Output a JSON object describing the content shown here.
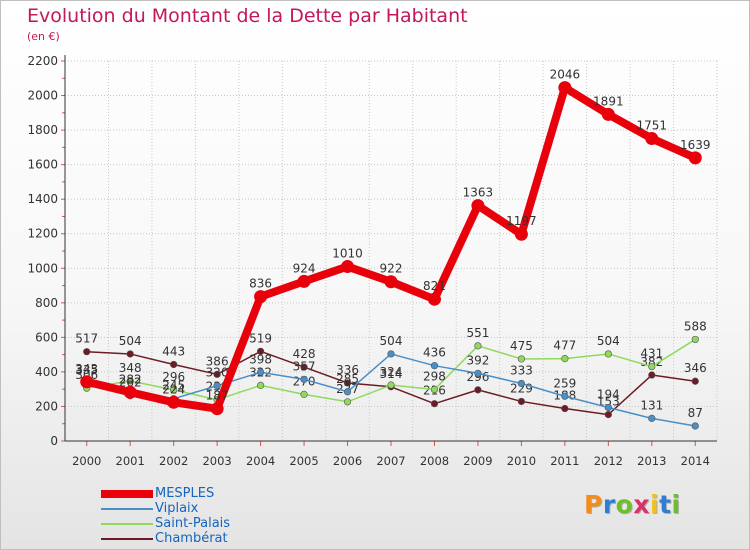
{
  "title": "Evolution du Montant de la Dette par Habitant",
  "unit": "(en €)",
  "logo": {
    "letters": [
      "P",
      "r",
      "o",
      "x",
      "i",
      "t",
      "i"
    ],
    "colors": [
      "#f28c1e",
      "#2e7fd1",
      "#6cbf2a",
      "#d9316a",
      "#f2c01e",
      "#2e7fd1",
      "#6cbf2a"
    ]
  },
  "chart_data": {
    "type": "line",
    "x": [
      "2000",
      "2001",
      "2002",
      "2003",
      "2004",
      "2005",
      "2006",
      "2007",
      "2008",
      "2009",
      "2010",
      "2011",
      "2012",
      "2013",
      "2014"
    ],
    "ylim": [
      0,
      2200
    ],
    "yticks": [
      "0",
      "200",
      "400",
      "600",
      "800",
      "1000",
      "1200",
      "1400",
      "1600",
      "1800",
      "2000",
      "2200"
    ],
    "grid": true,
    "legend_position": "bottom-left",
    "series": [
      {
        "name": "Chambérat",
        "color": "#6b1c24",
        "values": [
          517,
          504,
          443,
          386,
          519,
          428,
          336,
          314,
          216,
          296,
          229,
          188,
          153,
          382,
          346
        ],
        "labels": [
          "517",
          "504",
          "443",
          "386",
          "519",
          "428",
          "336",
          "314",
          "216",
          "296",
          "229",
          "188",
          "153",
          "382",
          "346"
        ]
      },
      {
        "name": "Saint-Palais",
        "color": "#8fd95c",
        "values": [
          306,
          348,
          296,
          239,
          322,
          270,
          227,
          324,
          298,
          551,
          475,
          477,
          504,
          431,
          588
        ],
        "labels": [
          "306",
          "348",
          "296",
          "239",
          "322",
          "270",
          "227",
          "324",
          "298",
          "551",
          "475",
          "477",
          "504",
          "431",
          "588"
        ]
      },
      {
        "name": "Viplaix",
        "color": "#4a90c8",
        "values": [
          335,
          262,
          245,
          320,
          398,
          357,
          285,
          504,
          436,
          392,
          333,
          259,
          194,
          131,
          87
        ],
        "labels": [
          "335",
          "262",
          "245",
          "320",
          "398",
          "357",
          "285",
          "504",
          "436",
          "392",
          "333",
          "259",
          "194",
          "131",
          "87"
        ]
      },
      {
        "name": "MESPLES",
        "color": "#e8000b",
        "values": [
          343,
          282,
          224,
          187,
          836,
          924,
          1010,
          922,
          821,
          1363,
          1197,
          2046,
          1891,
          1751,
          1639
        ],
        "labels": [
          "343",
          "282",
          "224",
          "187",
          "836",
          "924",
          "1010",
          "922",
          "821",
          "1363",
          "1197",
          "2046",
          "1891",
          "1751",
          "1639"
        ]
      }
    ],
    "legend_order": [
      "MESPLES",
      "Viplaix",
      "Saint-Palais",
      "Chambérat"
    ]
  }
}
